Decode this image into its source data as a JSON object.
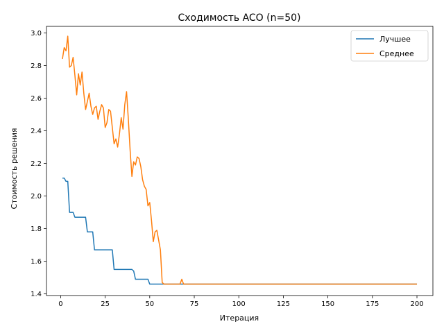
{
  "chart_data": {
    "type": "line",
    "title": "Сходимость ACO (n=50)",
    "xlabel": "Итерация",
    "ylabel": "Стоимость решения",
    "xlim": [
      -7.95,
      208.95
    ],
    "ylim": [
      1.39,
      3.04
    ],
    "xticks": [
      0,
      25,
      50,
      75,
      100,
      125,
      150,
      175,
      200
    ],
    "yticks": [
      1.4,
      1.6,
      1.8,
      2.0,
      2.2,
      2.4,
      2.6,
      2.8,
      3.0
    ],
    "ytick_labels": [
      "1.4",
      "1.6",
      "1.8",
      "2.0",
      "2.2",
      "2.4",
      "2.6",
      "2.8",
      "3.0"
    ],
    "grid": false,
    "legend_position": "top-right",
    "series": [
      {
        "name": "Лучшее",
        "color": "#1f77b4",
        "x": [
          1,
          2,
          3,
          4,
          5,
          6,
          7,
          8,
          9,
          10,
          11,
          12,
          13,
          14,
          15,
          16,
          17,
          18,
          19,
          20,
          21,
          22,
          23,
          24,
          25,
          26,
          27,
          28,
          29,
          30,
          31,
          32,
          33,
          34,
          35,
          36,
          37,
          38,
          39,
          40,
          41,
          42,
          43,
          44,
          45,
          46,
          47,
          48,
          49,
          50,
          51,
          52,
          53,
          54,
          55,
          56,
          57,
          58,
          59,
          60,
          70,
          100,
          150,
          200
        ],
        "y": [
          2.11,
          2.11,
          2.09,
          2.09,
          1.9,
          1.9,
          1.9,
          1.87,
          1.87,
          1.87,
          1.87,
          1.87,
          1.87,
          1.87,
          1.78,
          1.78,
          1.78,
          1.78,
          1.67,
          1.67,
          1.67,
          1.67,
          1.67,
          1.67,
          1.67,
          1.67,
          1.67,
          1.67,
          1.67,
          1.55,
          1.55,
          1.55,
          1.55,
          1.55,
          1.55,
          1.55,
          1.55,
          1.55,
          1.55,
          1.55,
          1.54,
          1.49,
          1.49,
          1.49,
          1.49,
          1.49,
          1.49,
          1.49,
          1.49,
          1.46,
          1.46,
          1.46,
          1.46,
          1.46,
          1.46,
          1.46,
          1.46,
          1.46,
          1.46,
          1.46,
          1.46,
          1.46,
          1.46,
          1.46
        ]
      },
      {
        "name": "Среднее",
        "color": "#ff7f0e",
        "x": [
          1,
          2,
          3,
          4,
          5,
          6,
          7,
          8,
          9,
          10,
          11,
          12,
          13,
          14,
          15,
          16,
          17,
          18,
          19,
          20,
          21,
          22,
          23,
          24,
          25,
          26,
          27,
          28,
          29,
          30,
          31,
          32,
          33,
          34,
          35,
          36,
          37,
          38,
          39,
          40,
          41,
          42,
          43,
          44,
          45,
          46,
          47,
          48,
          49,
          50,
          51,
          52,
          53,
          54,
          55,
          56,
          57,
          58,
          59,
          60,
          61,
          62,
          63,
          64,
          65,
          66,
          67,
          68,
          69,
          70,
          100,
          150,
          200
        ],
        "y": [
          2.84,
          2.91,
          2.89,
          2.98,
          2.79,
          2.8,
          2.85,
          2.74,
          2.62,
          2.75,
          2.68,
          2.76,
          2.63,
          2.53,
          2.58,
          2.63,
          2.55,
          2.5,
          2.54,
          2.55,
          2.47,
          2.52,
          2.56,
          2.54,
          2.42,
          2.45,
          2.53,
          2.52,
          2.42,
          2.32,
          2.35,
          2.3,
          2.38,
          2.48,
          2.41,
          2.56,
          2.64,
          2.47,
          2.28,
          2.12,
          2.21,
          2.19,
          2.24,
          2.23,
          2.18,
          2.1,
          2.06,
          2.04,
          1.94,
          1.96,
          1.85,
          1.72,
          1.78,
          1.79,
          1.73,
          1.67,
          1.47,
          1.46,
          1.46,
          1.46,
          1.46,
          1.46,
          1.46,
          1.46,
          1.46,
          1.46,
          1.46,
          1.49,
          1.46,
          1.46,
          1.46,
          1.46,
          1.46
        ]
      }
    ]
  }
}
